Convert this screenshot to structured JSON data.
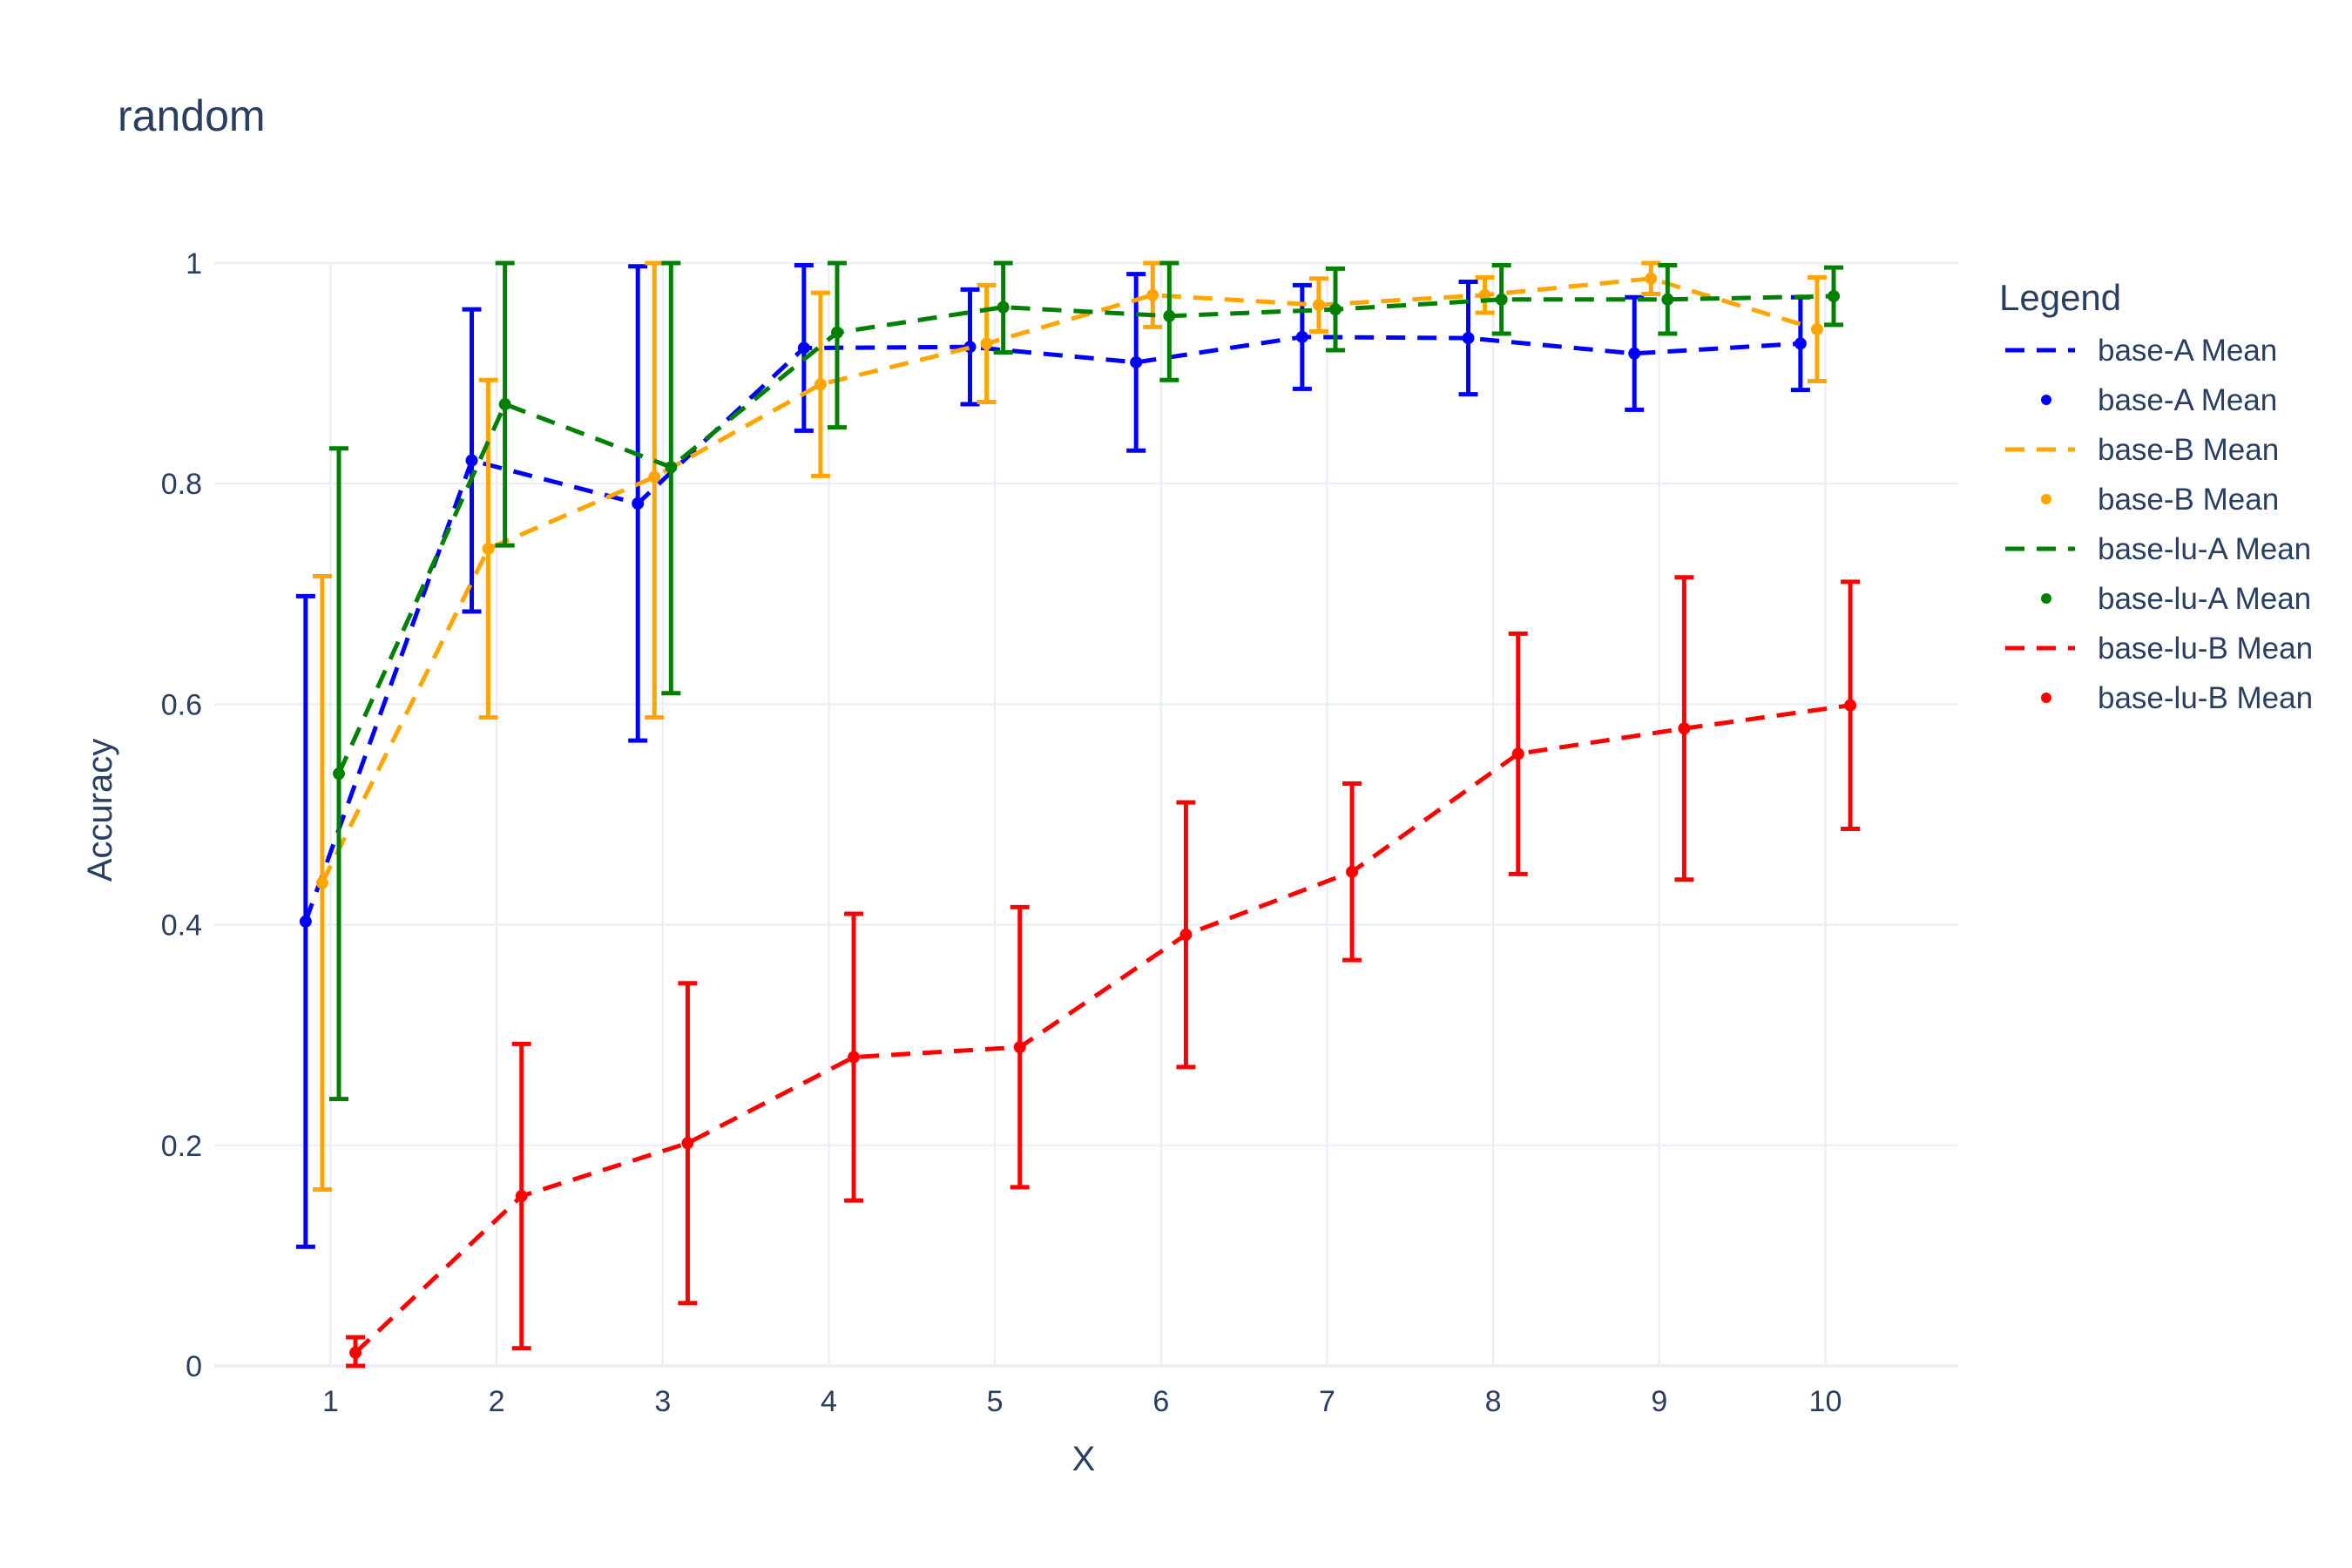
{
  "chart_data": {
    "type": "line",
    "title": "random",
    "xlabel": "X",
    "ylabel": "Accuracy",
    "xlim": [
      0.3,
      10.8
    ],
    "ylim": [
      0,
      1
    ],
    "grid": true,
    "legend_title": "Legend",
    "legend_position": "right",
    "x_ticks": [
      "1",
      "2",
      "3",
      "4",
      "5",
      "6",
      "7",
      "8",
      "9",
      "10"
    ],
    "y_ticks": [
      "0",
      "0.2",
      "0.4",
      "0.6",
      "0.8",
      "1"
    ],
    "y_tick_values": [
      0,
      0.2,
      0.4,
      0.6,
      0.8,
      1
    ],
    "x": [
      1,
      2,
      3,
      4,
      5,
      6,
      7,
      8,
      9,
      10
    ],
    "series": [
      {
        "name": "base-A Mean",
        "color": "#0000ff",
        "offset": -0.15,
        "values": [
          0.403,
          0.821,
          0.782,
          0.923,
          0.924,
          0.91,
          0.933,
          0.932,
          0.918,
          0.927
        ],
        "error": [
          0.295,
          0.137,
          0.215,
          0.075,
          0.052,
          0.08,
          0.047,
          0.051,
          0.051,
          0.042
        ]
      },
      {
        "name": "base-B Mean",
        "color": "#ffa500",
        "offset": -0.05,
        "values": [
          0.438,
          0.741,
          0.806,
          0.89,
          0.927,
          0.971,
          0.962,
          0.971,
          0.986,
          0.94
        ],
        "error": [
          0.278,
          0.153,
          0.218,
          0.083,
          0.053,
          0.029,
          0.024,
          0.016,
          0.014,
          0.047
        ]
      },
      {
        "name": "base-lu-A Mean",
        "color": "#008000",
        "offset": 0.05,
        "values": [
          0.537,
          0.872,
          0.815,
          0.937,
          0.96,
          0.952,
          0.958,
          0.967,
          0.967,
          0.97
        ],
        "error": [
          0.295,
          0.128,
          0.205,
          0.086,
          0.041,
          0.058,
          0.037,
          0.031,
          0.031,
          0.026
        ]
      },
      {
        "name": "base-lu-B Mean",
        "color": "#ff0000",
        "offset": 0.15,
        "values": [
          0.012,
          0.154,
          0.202,
          0.28,
          0.289,
          0.391,
          0.448,
          0.555,
          0.578,
          0.599
        ],
        "error": [
          0.014,
          0.138,
          0.145,
          0.13,
          0.127,
          0.12,
          0.08,
          0.109,
          0.137,
          0.112
        ]
      }
    ]
  }
}
